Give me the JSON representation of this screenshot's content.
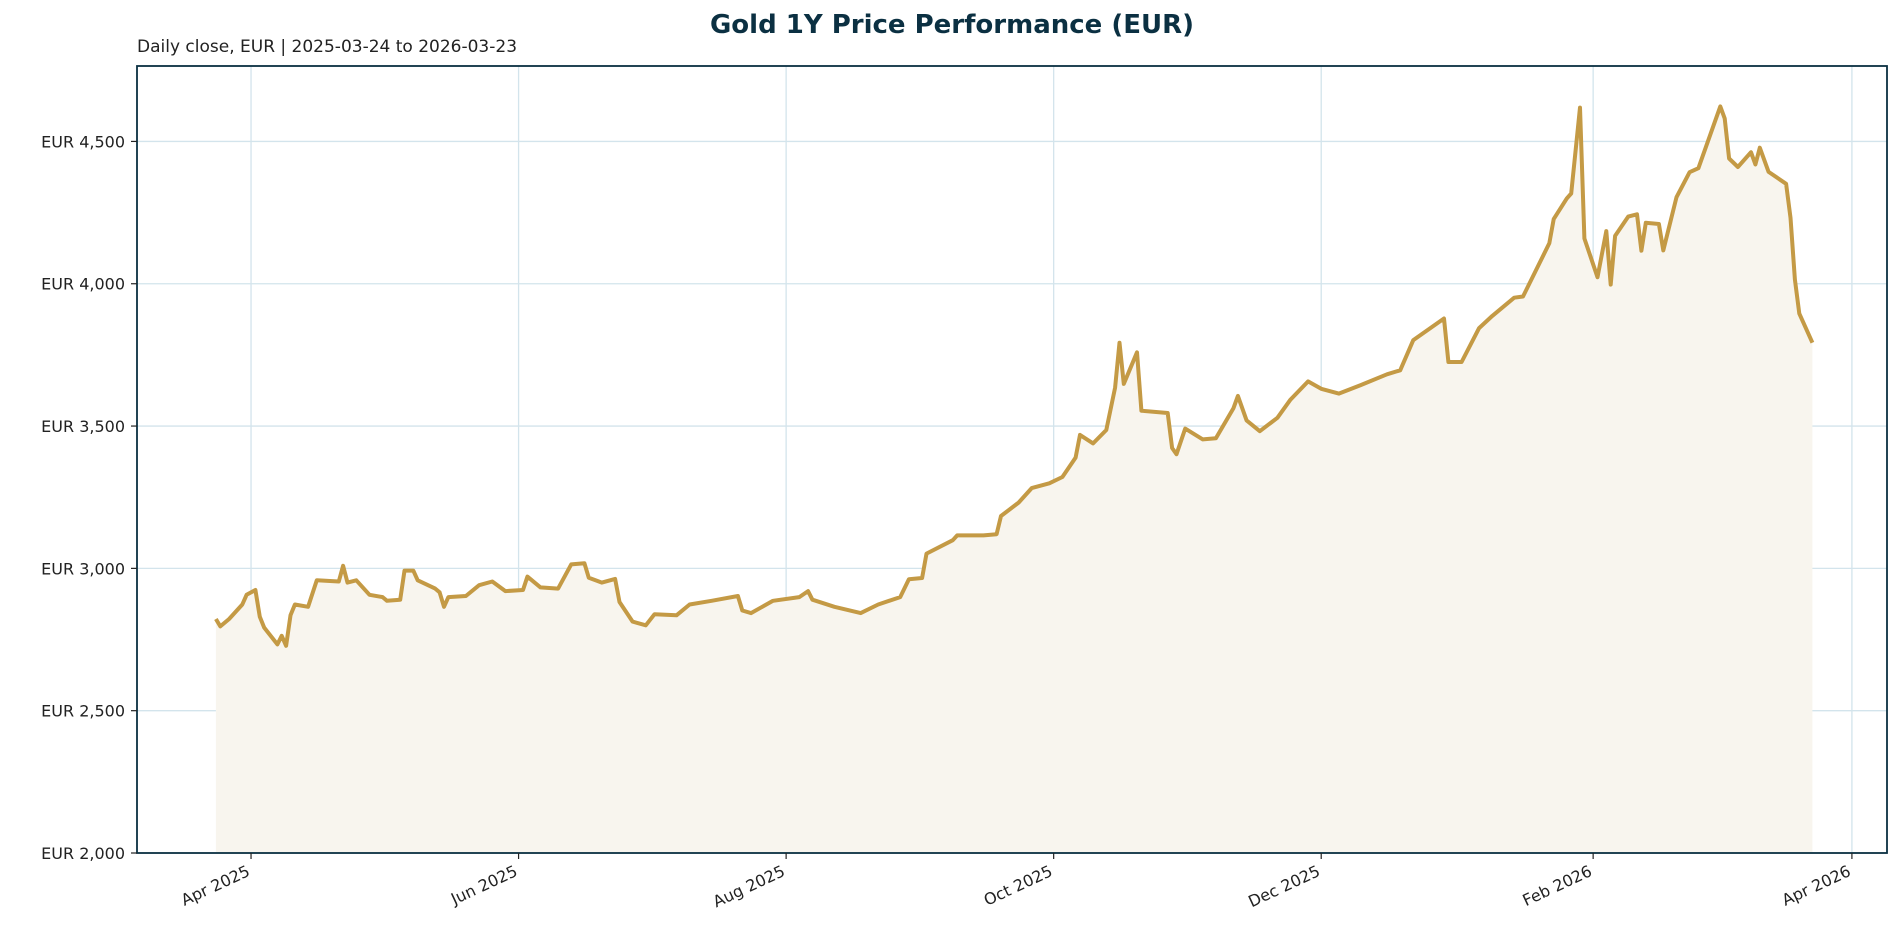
{
  "chart_data": {
    "type": "area",
    "title": "Gold 1Y Price Performance (EUR)",
    "subtitle": "Daily close, EUR | 2025-03-24 to 2026-03-23",
    "xlabel": "",
    "ylabel": "",
    "xlim": [
      "2025-03-06",
      "2026-04-09"
    ],
    "ylim": [
      2000,
      4765
    ],
    "grid": true,
    "colors": {
      "line": "#c49a45",
      "fill": "#f8f5ee",
      "grid": "#d3e4ec",
      "frame": "#0b3042",
      "title": "#0b3042"
    },
    "y_ticks": [
      {
        "value": 2000,
        "label": "EUR 2,000"
      },
      {
        "value": 2500,
        "label": "EUR 2,500"
      },
      {
        "value": 3000,
        "label": "EUR 3,000"
      },
      {
        "value": 3500,
        "label": "EUR 3,500"
      },
      {
        "value": 4000,
        "label": "EUR 4,000"
      },
      {
        "value": 4500,
        "label": "EUR 4,500"
      }
    ],
    "x_ticks": [
      {
        "value": "2025-04-01",
        "label": "Apr 2025"
      },
      {
        "value": "2025-06-01",
        "label": "Jun 2025"
      },
      {
        "value": "2025-08-01",
        "label": "Aug 2025"
      },
      {
        "value": "2025-10-01",
        "label": "Oct 2025"
      },
      {
        "value": "2025-12-01",
        "label": "Dec 2025"
      },
      {
        "value": "2026-02-01",
        "label": "Feb 2026"
      },
      {
        "value": "2026-04-01",
        "label": "Apr 2026"
      }
    ],
    "series": [
      {
        "points": [
          [
            "2025-03-24",
            2822
          ],
          [
            "2025-03-25",
            2796
          ],
          [
            "2025-03-27",
            2822
          ],
          [
            "2025-03-30",
            2873
          ],
          [
            "2025-03-31",
            2907
          ],
          [
            "2025-04-02",
            2924
          ],
          [
            "2025-04-03",
            2830
          ],
          [
            "2025-04-04",
            2792
          ],
          [
            "2025-04-07",
            2733
          ],
          [
            "2025-04-08",
            2763
          ],
          [
            "2025-04-09",
            2728
          ],
          [
            "2025-04-10",
            2835
          ],
          [
            "2025-04-11",
            2873
          ],
          [
            "2025-04-14",
            2865
          ],
          [
            "2025-04-16",
            2958
          ],
          [
            "2025-04-21",
            2954
          ],
          [
            "2025-04-22",
            3009
          ],
          [
            "2025-04-23",
            2950
          ],
          [
            "2025-04-25",
            2958
          ],
          [
            "2025-04-28",
            2907
          ],
          [
            "2025-05-01",
            2899
          ],
          [
            "2025-05-02",
            2886
          ],
          [
            "2025-05-05",
            2890
          ],
          [
            "2025-05-06",
            2992
          ],
          [
            "2025-05-08",
            2992
          ],
          [
            "2025-05-09",
            2958
          ],
          [
            "2025-05-13",
            2929
          ],
          [
            "2025-05-14",
            2916
          ],
          [
            "2025-05-15",
            2865
          ],
          [
            "2025-05-16",
            2899
          ],
          [
            "2025-05-20",
            2903
          ],
          [
            "2025-05-23",
            2941
          ],
          [
            "2025-05-26",
            2954
          ],
          [
            "2025-05-29",
            2920
          ],
          [
            "2025-06-02",
            2924
          ],
          [
            "2025-06-03",
            2971
          ],
          [
            "2025-06-06",
            2933
          ],
          [
            "2025-06-10",
            2929
          ],
          [
            "2025-06-13",
            3014
          ],
          [
            "2025-06-16",
            3018
          ],
          [
            "2025-06-17",
            2967
          ],
          [
            "2025-06-20",
            2950
          ],
          [
            "2025-06-23",
            2963
          ],
          [
            "2025-06-24",
            2882
          ],
          [
            "2025-06-27",
            2813
          ],
          [
            "2025-06-30",
            2800
          ],
          [
            "2025-07-02",
            2839
          ],
          [
            "2025-07-07",
            2835
          ],
          [
            "2025-07-10",
            2873
          ],
          [
            "2025-07-15",
            2886
          ],
          [
            "2025-07-21",
            2903
          ],
          [
            "2025-07-22",
            2852
          ],
          [
            "2025-07-24",
            2843
          ],
          [
            "2025-07-29",
            2886
          ],
          [
            "2025-08-04",
            2899
          ],
          [
            "2025-08-06",
            2920
          ],
          [
            "2025-08-07",
            2890
          ],
          [
            "2025-08-12",
            2865
          ],
          [
            "2025-08-18",
            2843
          ],
          [
            "2025-08-22",
            2873
          ],
          [
            "2025-08-27",
            2899
          ],
          [
            "2025-08-29",
            2962
          ],
          [
            "2025-09-01",
            2966
          ],
          [
            "2025-09-02",
            3052
          ],
          [
            "2025-09-08",
            3099
          ],
          [
            "2025-09-09",
            3116
          ],
          [
            "2025-09-15",
            3116
          ],
          [
            "2025-09-18",
            3120
          ],
          [
            "2025-09-19",
            3184
          ],
          [
            "2025-09-23",
            3231
          ],
          [
            "2025-09-26",
            3282
          ],
          [
            "2025-09-30",
            3299
          ],
          [
            "2025-10-03",
            3321
          ],
          [
            "2025-10-06",
            3389
          ],
          [
            "2025-10-07",
            3469
          ],
          [
            "2025-10-10",
            3439
          ],
          [
            "2025-10-13",
            3486
          ],
          [
            "2025-10-15",
            3635
          ],
          [
            "2025-10-16",
            3793
          ],
          [
            "2025-10-17",
            3648
          ],
          [
            "2025-10-20",
            3759
          ],
          [
            "2025-10-21",
            3554
          ],
          [
            "2025-10-27",
            3546
          ],
          [
            "2025-10-28",
            3423
          ],
          [
            "2025-10-29",
            3401
          ],
          [
            "2025-10-31",
            3491
          ],
          [
            "2025-11-04",
            3453
          ],
          [
            "2025-11-07",
            3457
          ],
          [
            "2025-11-11",
            3563
          ],
          [
            "2025-11-12",
            3606
          ],
          [
            "2025-11-14",
            3520
          ],
          [
            "2025-11-17",
            3482
          ],
          [
            "2025-11-21",
            3529
          ],
          [
            "2025-11-24",
            3593
          ],
          [
            "2025-11-28",
            3657
          ],
          [
            "2025-12-01",
            3631
          ],
          [
            "2025-12-05",
            3614
          ],
          [
            "2025-12-10",
            3644
          ],
          [
            "2025-12-16",
            3682
          ],
          [
            "2025-12-19",
            3696
          ],
          [
            "2025-12-22",
            3802
          ],
          [
            "2025-12-29",
            3878
          ],
          [
            "2025-12-30",
            3725
          ],
          [
            "2026-01-02",
            3725
          ],
          [
            "2026-01-06",
            3844
          ],
          [
            "2026-01-09",
            3887
          ],
          [
            "2026-01-14",
            3951
          ],
          [
            "2026-01-16",
            3955
          ],
          [
            "2026-01-22",
            4142
          ],
          [
            "2026-01-23",
            4227
          ],
          [
            "2026-01-26",
            4300
          ],
          [
            "2026-01-27",
            4317
          ],
          [
            "2026-01-29",
            4619
          ],
          [
            "2026-01-30",
            4159
          ],
          [
            "2026-02-02",
            4023
          ],
          [
            "2026-02-04",
            4185
          ],
          [
            "2026-02-05",
            3997
          ],
          [
            "2026-02-06",
            4168
          ],
          [
            "2026-02-09",
            4236
          ],
          [
            "2026-02-11",
            4244
          ],
          [
            "2026-02-12",
            4116
          ],
          [
            "2026-02-13",
            4214
          ],
          [
            "2026-02-16",
            4210
          ],
          [
            "2026-02-17",
            4117
          ],
          [
            "2026-02-20",
            4304
          ],
          [
            "2026-02-23",
            4392
          ],
          [
            "2026-02-25",
            4406
          ],
          [
            "2026-03-02",
            4623
          ],
          [
            "2026-03-03",
            4581
          ],
          [
            "2026-03-04",
            4440
          ],
          [
            "2026-03-06",
            4410
          ],
          [
            "2026-03-09",
            4462
          ],
          [
            "2026-03-10",
            4419
          ],
          [
            "2026-03-11",
            4478
          ],
          [
            "2026-03-13",
            4393
          ],
          [
            "2026-03-17",
            4351
          ],
          [
            "2026-03-18",
            4232
          ],
          [
            "2026-03-19",
            4015
          ],
          [
            "2026-03-20",
            3895
          ],
          [
            "2026-03-23",
            3793
          ]
        ]
      }
    ]
  }
}
